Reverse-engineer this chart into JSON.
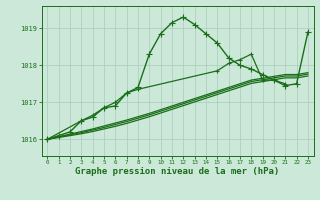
{
  "bg_color": "#cce8d8",
  "grid_color": "#aaccbb",
  "line_color_dark": "#1a6e1a",
  "xlabel": "Graphe pression niveau de la mer (hPa)",
  "xlabel_fontsize": 6.5,
  "ylabel_ticks": [
    1016,
    1017,
    1018,
    1019
  ],
  "xlim": [
    -0.5,
    23.5
  ],
  "ylim": [
    1015.55,
    1019.6
  ],
  "x_hours": [
    0,
    1,
    2,
    3,
    4,
    5,
    6,
    7,
    8,
    9,
    10,
    11,
    12,
    13,
    14,
    15,
    16,
    17,
    18,
    19,
    20,
    21,
    22,
    23
  ],
  "series_jagged": [
    1016.0,
    1016.1,
    1016.2,
    1016.5,
    1016.6,
    1016.85,
    1016.9,
    1017.25,
    1017.4,
    1018.3,
    1018.85,
    1019.15,
    1019.3,
    1019.1,
    1018.85,
    1018.6,
    1018.2,
    1018.0,
    1017.9,
    1017.75,
    1017.6,
    1017.45,
    1017.5,
    1018.9
  ],
  "series_line1": [
    1016.0,
    1016.07,
    1016.14,
    1016.21,
    1016.28,
    1016.36,
    1016.44,
    1016.52,
    1016.61,
    1016.7,
    1016.8,
    1016.9,
    1017.0,
    1017.1,
    1017.2,
    1017.3,
    1017.4,
    1017.5,
    1017.6,
    1017.65,
    1017.7,
    1017.75,
    1017.75,
    1017.8
  ],
  "series_line2": [
    1016.0,
    1016.06,
    1016.12,
    1016.18,
    1016.25,
    1016.32,
    1016.4,
    1016.48,
    1016.57,
    1016.66,
    1016.76,
    1016.86,
    1016.96,
    1017.06,
    1017.16,
    1017.26,
    1017.36,
    1017.46,
    1017.56,
    1017.61,
    1017.66,
    1017.71,
    1017.71,
    1017.76
  ],
  "series_line3": [
    1016.0,
    1016.05,
    1016.1,
    1016.15,
    1016.21,
    1016.28,
    1016.35,
    1016.43,
    1016.52,
    1016.61,
    1016.71,
    1016.81,
    1016.91,
    1017.01,
    1017.11,
    1017.21,
    1017.31,
    1017.41,
    1017.51,
    1017.56,
    1017.61,
    1017.66,
    1017.66,
    1017.71
  ],
  "series_sparse": [
    1016.0,
    null,
    null,
    1016.5,
    1016.65,
    1016.85,
    1017.0,
    1017.25,
    1017.35,
    null,
    null,
    null,
    null,
    null,
    null,
    1017.85,
    1018.05,
    1018.15,
    1018.3,
    1017.6,
    1017.6,
    1017.5,
    null,
    null
  ]
}
